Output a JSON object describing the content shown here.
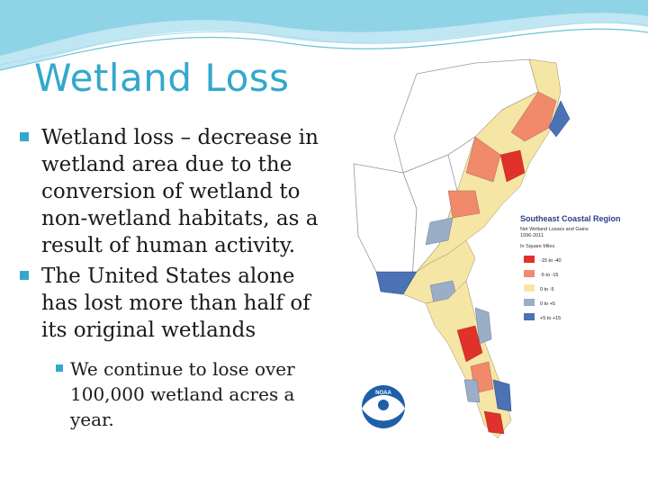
{
  "slide": {
    "title": "Wetland Loss",
    "bullets": [
      "Wetland loss – decrease in wetland area due to the conversion of wetland to non-wetland habitats, as a result of human activity.",
      "The United States alone has lost more than half of its original wetlands"
    ],
    "subbullets": [
      "We continue to lose over 100,000 wetland acres a year."
    ]
  },
  "map": {
    "legend": {
      "title": "Southeast Coastal Region",
      "subtitle": "Net Wetland Losses and Gains",
      "years": "1996-2011",
      "units": "In Square Miles",
      "items": [
        {
          "label": "-15 to -40",
          "color": "#e0312a"
        },
        {
          "label": "-5 to -15",
          "color": "#f08a6b"
        },
        {
          "label": "0 to -5",
          "color": "#f6e6a6"
        },
        {
          "label": "0 to +5",
          "color": "#9aaec8"
        },
        {
          "label": "+5 to +15",
          "color": "#4a72b5"
        }
      ]
    },
    "logo_text": "NOAA"
  },
  "colors": {
    "accent": "#33a8cc",
    "text": "#1a1a1a"
  }
}
